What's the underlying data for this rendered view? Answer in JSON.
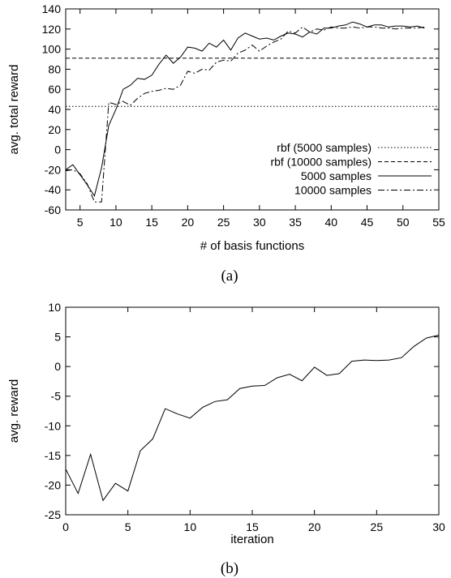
{
  "chart_data": [
    {
      "type": "line",
      "caption": "(a)",
      "xlabel": "# of basis functions",
      "ylabel": "avg. total reward",
      "xlim": [
        3,
        55
      ],
      "ylim": [
        -60,
        140
      ],
      "xticks": [
        5,
        10,
        15,
        20,
        25,
        30,
        35,
        40,
        45,
        50,
        55
      ],
      "yticks": [
        -60,
        -40,
        -20,
        0,
        20,
        40,
        60,
        80,
        100,
        120,
        140
      ],
      "grid": false,
      "legend": "bottom-right",
      "series": [
        {
          "name": "rbf (5000 samples)",
          "dash": "dotted",
          "x": [
            3,
            55
          ],
          "y": [
            43,
            43
          ]
        },
        {
          "name": "rbf (10000 samples)",
          "dash": "dashed",
          "x": [
            3,
            55
          ],
          "y": [
            91,
            91
          ]
        },
        {
          "name": "5000 samples",
          "dash": "solid",
          "x": [
            3,
            4,
            5,
            6,
            7,
            8,
            9,
            10,
            11,
            12,
            13,
            14,
            15,
            16,
            17,
            18,
            19,
            20,
            21,
            22,
            23,
            24,
            25,
            26,
            27,
            28,
            29,
            30,
            31,
            32,
            33,
            34,
            35,
            36,
            37,
            38,
            39,
            40,
            41,
            42,
            43,
            44,
            45,
            46,
            47,
            48,
            49,
            50,
            51,
            52,
            53
          ],
          "y": [
            -20,
            -15,
            -25,
            -35,
            -46,
            -18,
            24,
            40,
            60,
            64,
            71,
            70,
            74,
            85,
            94,
            86,
            92,
            102,
            101,
            98,
            106,
            102,
            109,
            99,
            111,
            116,
            113,
            110,
            111,
            109,
            113,
            116,
            115,
            112,
            117,
            115,
            121,
            121,
            123,
            124,
            127,
            125,
            122,
            124,
            124,
            122,
            123,
            123,
            122,
            123,
            121
          ]
        },
        {
          "name": "10000 samples",
          "dash": "dashdot",
          "x": [
            3,
            4,
            5,
            6,
            7,
            8,
            9,
            10,
            11,
            12,
            13,
            14,
            15,
            16,
            17,
            18,
            19,
            20,
            21,
            22,
            23,
            24,
            25,
            26,
            27,
            28,
            29,
            30,
            31,
            32,
            33,
            34,
            35,
            36,
            37,
            38,
            39,
            40,
            41,
            42,
            43,
            44,
            45,
            46,
            47,
            48,
            49,
            50,
            51,
            52,
            53
          ],
          "y": [
            -21,
            -20,
            -24,
            -34,
            -52,
            -52,
            47,
            45,
            48,
            44,
            51,
            56,
            58,
            59,
            61,
            60,
            64,
            78,
            76,
            80,
            79,
            87,
            89,
            88,
            96,
            99,
            104,
            98,
            103,
            107,
            110,
            118,
            116,
            122,
            117,
            120,
            119,
            122,
            121,
            121,
            122,
            121,
            122,
            122,
            121,
            121,
            120,
            121,
            121,
            121,
            122
          ]
        }
      ]
    },
    {
      "type": "line",
      "caption": "(b)",
      "xlabel": "iteration",
      "ylabel": "avg. reward",
      "xlim": [
        0,
        30
      ],
      "ylim": [
        -25,
        10
      ],
      "xticks": [
        0,
        5,
        10,
        15,
        20,
        25,
        30
      ],
      "yticks": [
        -25,
        -20,
        -15,
        -10,
        -5,
        0,
        5,
        10
      ],
      "grid": false,
      "series": [
        {
          "dash": "solid",
          "x": [
            0,
            1,
            2,
            3,
            4,
            5,
            6,
            7,
            8,
            9,
            10,
            11,
            12,
            13,
            14,
            15,
            16,
            17,
            18,
            19,
            20,
            21,
            22,
            23,
            24,
            25,
            26,
            27,
            28,
            29,
            30
          ],
          "y": [
            -17.3,
            -21.4,
            -14.8,
            -22.6,
            -19.7,
            -21.0,
            -14.2,
            -12.2,
            -7.1,
            -8.0,
            -8.7,
            -6.9,
            -5.9,
            -5.6,
            -3.7,
            -3.3,
            -3.2,
            -1.9,
            -1.3,
            -2.4,
            -0.1,
            -1.5,
            -1.2,
            0.9,
            1.1,
            1.0,
            1.1,
            1.5,
            3.4,
            4.8,
            5.3
          ]
        }
      ]
    }
  ]
}
